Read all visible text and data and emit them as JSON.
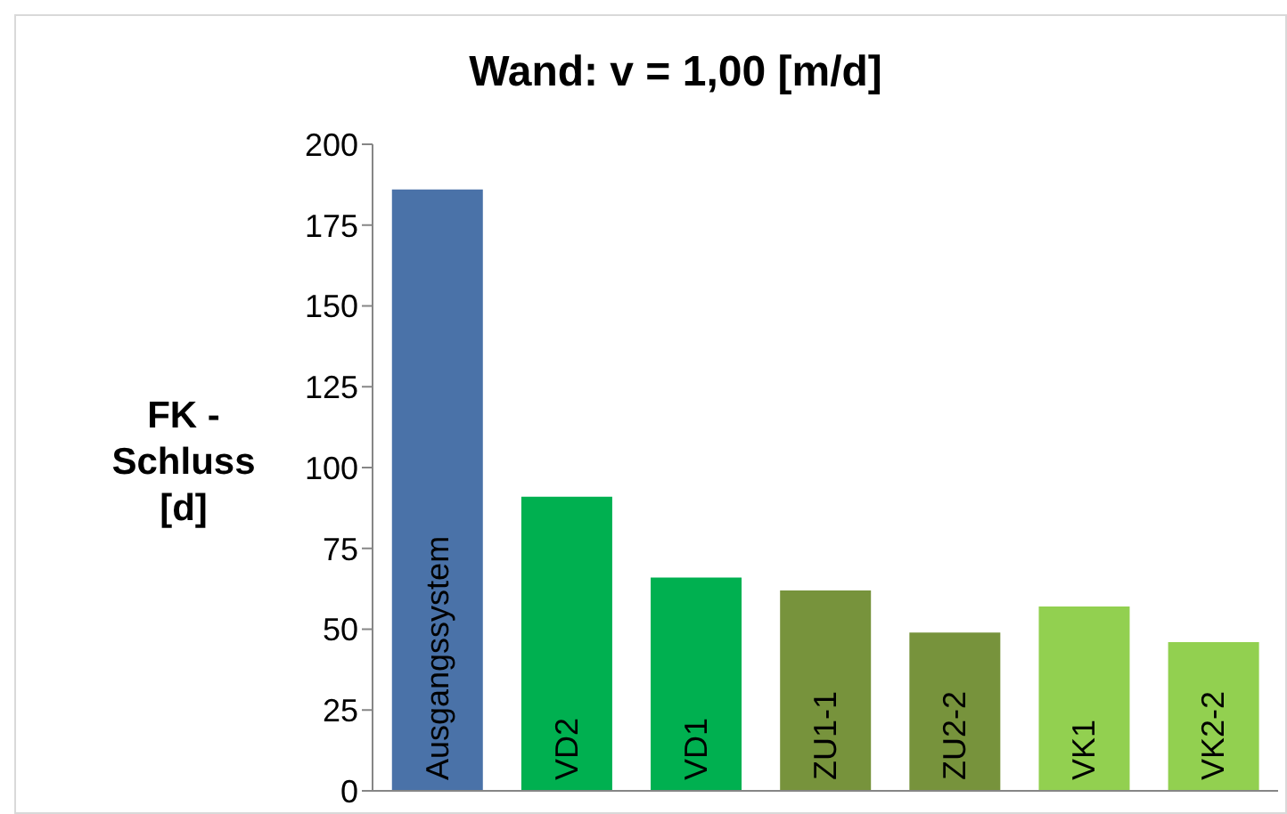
{
  "chart_data": {
    "type": "bar",
    "title": "Wand: v = 1,00 [m/d]",
    "ylabel": "FK - Schluss [d]",
    "categories": [
      "Ausgangssystem",
      "VD2",
      "VD1",
      "ZU1-1",
      "ZU2-2",
      "VK1",
      "VK2-2"
    ],
    "values": [
      186,
      91,
      66,
      62,
      49,
      57,
      46
    ],
    "colors": [
      "#4a72a8",
      "#00b050",
      "#00b050",
      "#77933c",
      "#77933c",
      "#92d050",
      "#92d050"
    ],
    "ylim": [
      0,
      200
    ],
    "yticks": [
      0,
      25,
      50,
      75,
      100,
      125,
      150,
      175,
      200
    ],
    "grid": false
  }
}
